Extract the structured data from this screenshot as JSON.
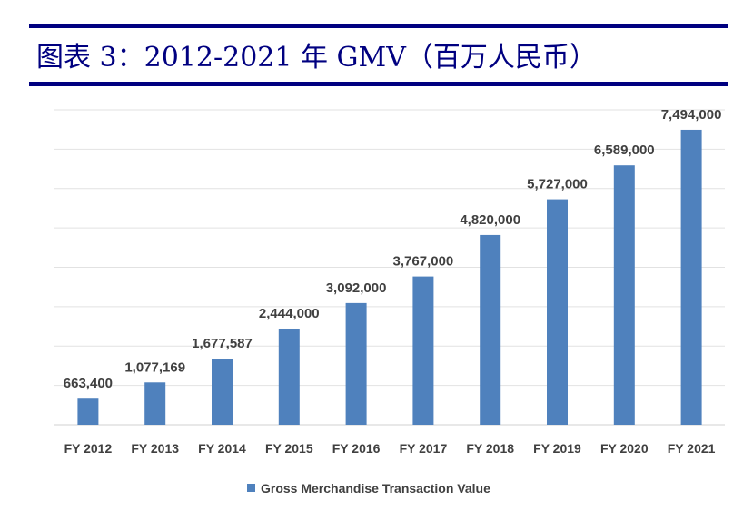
{
  "header": {
    "title": "图表 3：2012-2021 年 GMV（百万人民币）"
  },
  "chart_data": {
    "type": "bar",
    "title": "图表 3：2012-2021 年 GMV（百万人民币）",
    "categories": [
      "FY 2012",
      "FY 2013",
      "FY 2014",
      "FY 2015",
      "FY 2016",
      "FY 2017",
      "FY 2018",
      "FY 2019",
      "FY 2020",
      "FY 2021"
    ],
    "series": [
      {
        "name": "Gross Merchandise Transaction Value",
        "values": [
          663400,
          1077169,
          1677587,
          2444000,
          3092000,
          3767000,
          4820000,
          5727000,
          6589000,
          7494000
        ],
        "color": "#4F81BD"
      }
    ],
    "data_labels": [
      "663,400",
      "1,077,169",
      "1,677,587",
      "2,444,000",
      "3,092,000",
      "3,767,000",
      "4,820,000",
      "5,727,000",
      "6,589,000",
      "7,494,000"
    ],
    "xlabel": "",
    "ylabel": "",
    "ylim": [
      0,
      8000000
    ],
    "y_gridline_step": 1000000,
    "grid": true,
    "legend_position": "bottom"
  }
}
